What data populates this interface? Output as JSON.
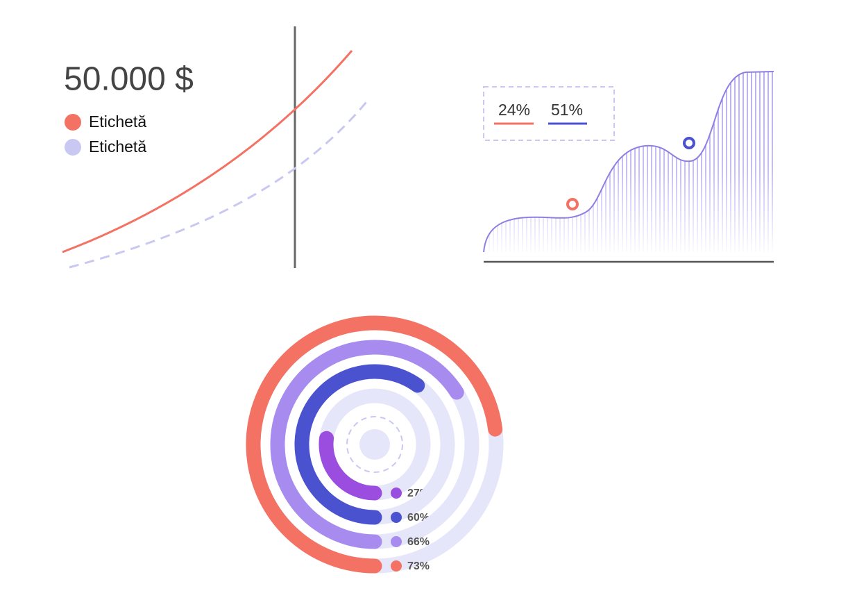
{
  "headline": "50.000 $",
  "legend": [
    "Etichetă",
    "Etichetă"
  ],
  "area_legend": [
    "24%",
    "51%"
  ],
  "chart_data": {
    "type": "radial_bar",
    "values": [
      27,
      60,
      66,
      73
    ],
    "value_labels": [
      "27%",
      "60%",
      "66%",
      "73%"
    ],
    "colors": [
      "#9b4de0",
      "#4a52d0",
      "#a78bef",
      "#f47264"
    ],
    "ylim": [
      0,
      100
    ]
  }
}
